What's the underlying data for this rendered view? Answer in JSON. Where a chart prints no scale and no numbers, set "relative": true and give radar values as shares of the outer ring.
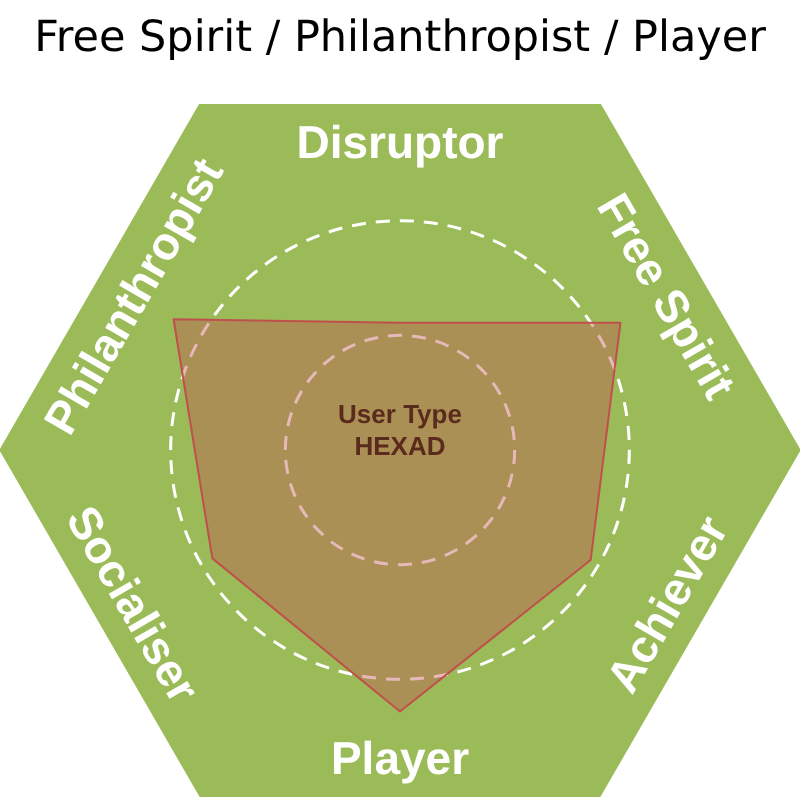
{
  "chart_data": {
    "type": "radar",
    "title": "Free Spirit / Philanthropist / Player",
    "relative": true,
    "categories": [
      "Disruptor",
      "Free Spirit",
      "Achiever",
      "Player",
      "Socialiser",
      "Philanthropist"
    ],
    "series": [
      {
        "color": "#c0504d",
        "values": [
          0.37,
          0.74,
          0.64,
          0.76,
          0.63,
          0.76
        ]
      }
    ],
    "annotations": [
      "User Type\nHEXAD"
    ],
    "grid": true,
    "marker": "none",
    "line_style": "solid"
  }
}
